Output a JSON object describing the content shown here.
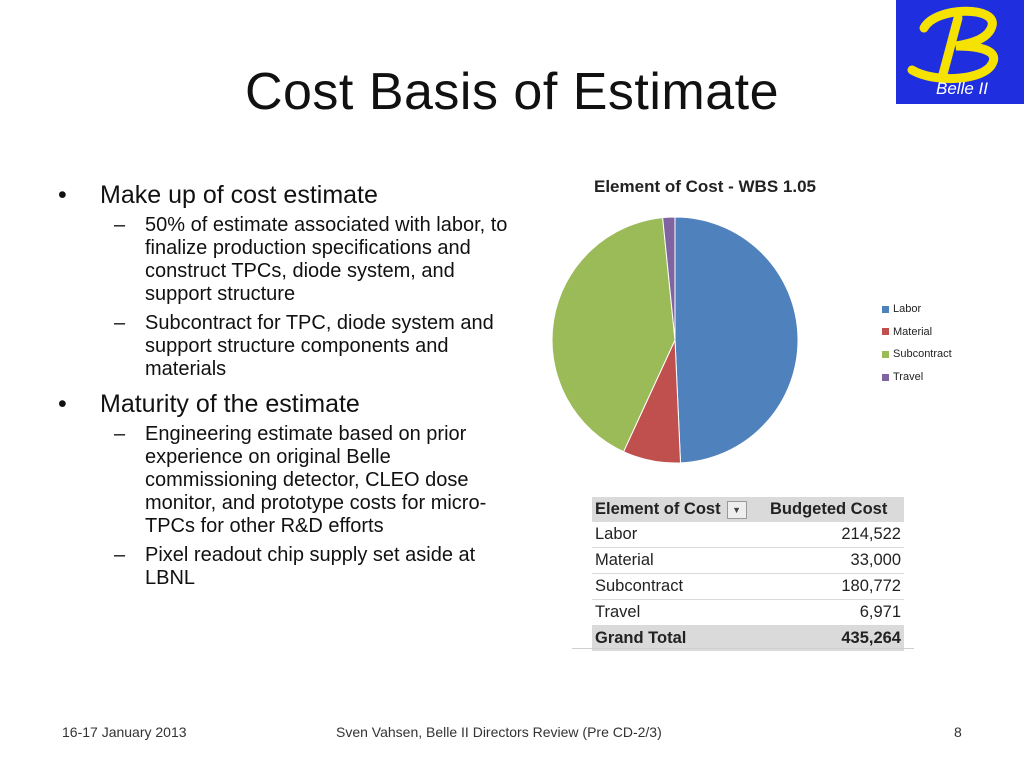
{
  "slide": {
    "title": "Cost Basis of Estimate",
    "logo_text": "Belle II"
  },
  "bullets": [
    {
      "text": "Make up of cost estimate",
      "subs": [
        "50% of estimate associated with labor, to finalize production specifications and construct TPCs, diode system, and support structure",
        "Subcontract for TPC, diode system and support structure components and materials"
      ]
    },
    {
      "text": "Maturity of the estimate",
      "subs": [
        "Engineering estimate based on prior experience on original Belle commissioning detector, CLEO dose monitor, and prototype costs for micro-TPCs for other R&D efforts",
        "Pixel readout chip supply set aside at LBNL"
      ]
    }
  ],
  "chart_data": {
    "type": "pie",
    "title": "Element of Cost - WBS 1.05",
    "categories": [
      "Labor",
      "Material",
      "Subcontract",
      "Travel"
    ],
    "values": [
      214522,
      33000,
      180772,
      6971
    ],
    "colors": [
      "#4f81bd",
      "#c0504d",
      "#9bbb59",
      "#8064a2"
    ],
    "legend_position": "right"
  },
  "table": {
    "headers": [
      "Element of Cost",
      "Budgeted Cost"
    ],
    "dropdown_icon": "dropdown-arrow-icon",
    "rows": [
      [
        "Labor",
        "214,522"
      ],
      [
        "Material",
        "33,000"
      ],
      [
        "Subcontract",
        "180,772"
      ],
      [
        "Travel",
        "6,971"
      ]
    ],
    "total": [
      "Grand Total",
      "435,264"
    ]
  },
  "footer": {
    "date": "16-17 January 2013",
    "center": "Sven Vahsen, Belle II Directors Review (Pre CD-2/3)",
    "page": "8"
  }
}
